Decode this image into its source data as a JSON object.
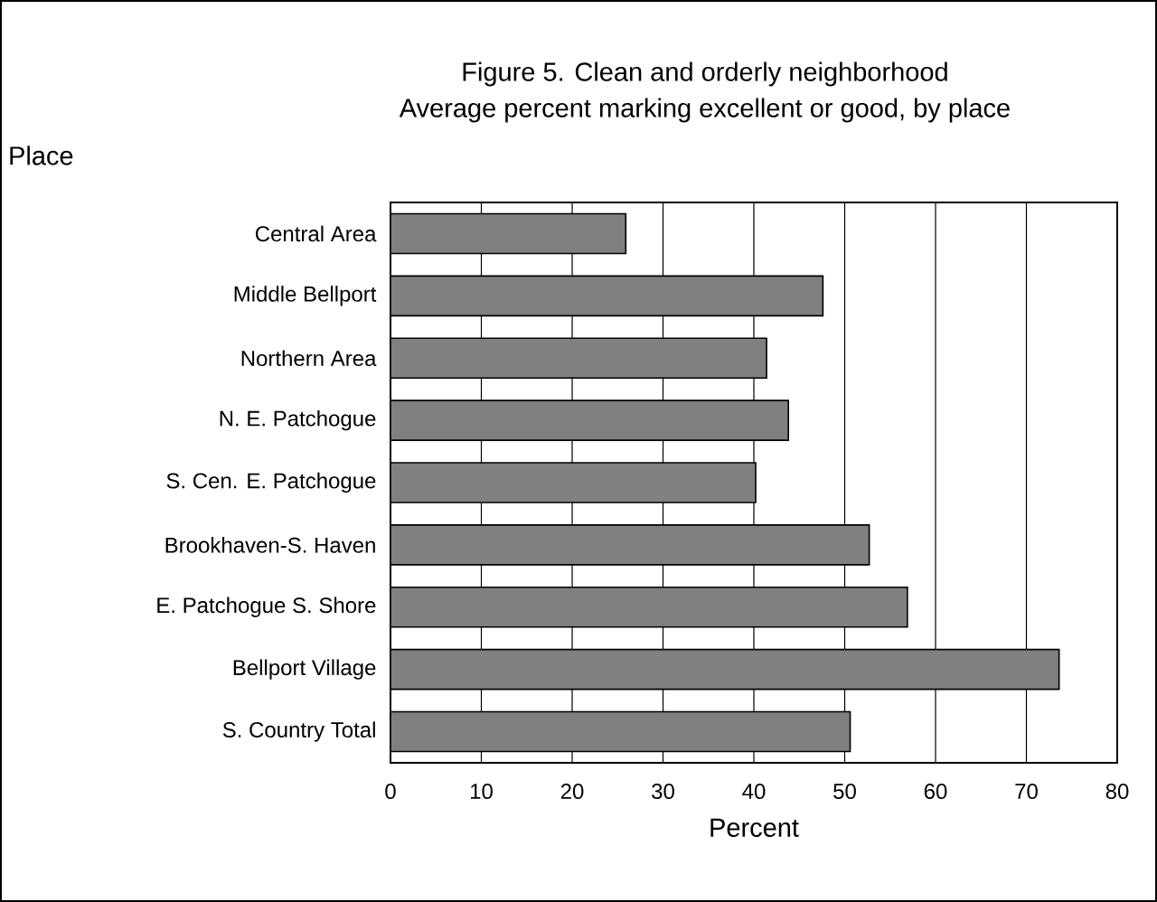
{
  "chart_data": {
    "type": "bar",
    "orientation": "horizontal",
    "title": "Figure  5.  Clean and orderly neighborhood",
    "subtitle": "Average percent marking excellent or good, by place",
    "ylabel": "Place",
    "xlabel": "Percent",
    "categories": [
      "Central Area",
      "Middle Bellport",
      "Northern Area",
      "N. E. Patchogue",
      "S. Cen. E. Patchogue",
      "Brookhaven-S. Haven",
      "E. Patchogue S. Shore",
      "Bellport Village",
      "S. Country Total"
    ],
    "values": [
      25.9,
      47.6,
      41.4,
      43.8,
      40.2,
      52.7,
      56.9,
      73.6,
      50.6
    ],
    "color": "#808080",
    "xlim": [
      0,
      80
    ],
    "xticks": [
      0,
      10,
      20,
      30,
      40,
      50,
      60,
      70,
      80
    ],
    "grid": "x"
  }
}
